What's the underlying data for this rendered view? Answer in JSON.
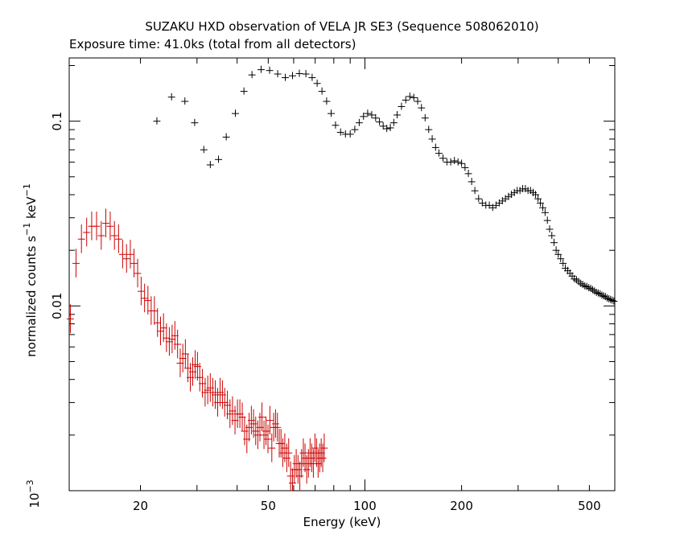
{
  "chart_data": {
    "type": "scatter",
    "title": "SUZAKU HXD observation of VELA JR SE3 (Sequence 508062010)",
    "subtitle": "Exposure time: 41.0ks (total from all detectors)",
    "xlabel": "Energy (keV)",
    "ylabel_prefix": "normalized counts s",
    "ylabel_mid": " keV",
    "ylabel_exp": "−1",
    "xscale": "log",
    "yscale": "log",
    "xlim": [
      12,
      600
    ],
    "ylim": [
      0.001,
      0.22
    ],
    "x_tick_labels": [
      {
        "value": 20,
        "label": "20"
      },
      {
        "value": 50,
        "label": "50"
      },
      {
        "value": 100,
        "label": "100"
      },
      {
        "value": 200,
        "label": "200"
      },
      {
        "value": 500,
        "label": "500"
      }
    ],
    "y_tick_labels": [
      {
        "value": 0.1,
        "label": "0.1"
      },
      {
        "value": 0.01,
        "label": "0.01"
      }
    ],
    "y_bottom_label": {
      "value": 0.001,
      "mantissa": "10",
      "exp": "−3"
    },
    "series": [
      {
        "color": "#000000",
        "points": [
          [
            22.5,
            0.1
          ],
          [
            25,
            0.135
          ],
          [
            27.5,
            0.128
          ],
          [
            29.5,
            0.098
          ],
          [
            31.5,
            0.07
          ],
          [
            33,
            0.058
          ],
          [
            35,
            0.062
          ],
          [
            37,
            0.082
          ],
          [
            39.5,
            0.11
          ],
          [
            42,
            0.145
          ],
          [
            44.5,
            0.178
          ],
          [
            47.5,
            0.19
          ],
          [
            50.5,
            0.188
          ],
          [
            53.5,
            0.18
          ],
          [
            56.5,
            0.172
          ],
          [
            59.5,
            0.176
          ],
          [
            62.5,
            0.181
          ],
          [
            65.5,
            0.18
          ],
          [
            68.5,
            0.172
          ],
          [
            71,
            0.16
          ],
          [
            73.5,
            0.145
          ],
          [
            76,
            0.128
          ],
          [
            78.5,
            0.11
          ],
          [
            81,
            0.095
          ],
          [
            84,
            0.087
          ],
          [
            87,
            0.085
          ],
          [
            90,
            0.085
          ],
          [
            93,
            0.09
          ],
          [
            96,
            0.098
          ],
          [
            99,
            0.106
          ],
          [
            102,
            0.11
          ],
          [
            105,
            0.108
          ],
          [
            108,
            0.104
          ],
          [
            111,
            0.099
          ],
          [
            114,
            0.094
          ],
          [
            117,
            0.091
          ],
          [
            120,
            0.092
          ],
          [
            123,
            0.098
          ],
          [
            126,
            0.108
          ],
          [
            130,
            0.12
          ],
          [
            134,
            0.13
          ],
          [
            138,
            0.136
          ],
          [
            142,
            0.134
          ],
          [
            146,
            0.128
          ],
          [
            150,
            0.118
          ],
          [
            154,
            0.104
          ],
          [
            158,
            0.09
          ],
          [
            162,
            0.08
          ],
          [
            166,
            0.072
          ],
          [
            170,
            0.067
          ],
          [
            175,
            0.063
          ],
          [
            180,
            0.06
          ],
          [
            185,
            0.06
          ],
          [
            190,
            0.061
          ],
          [
            195,
            0.06
          ],
          [
            200,
            0.059
          ],
          [
            205,
            0.056
          ],
          [
            210,
            0.052
          ],
          [
            215,
            0.047
          ],
          [
            220,
            0.042
          ],
          [
            226,
            0.038
          ],
          [
            232,
            0.036
          ],
          [
            238,
            0.035
          ],
          [
            244,
            0.035
          ],
          [
            250,
            0.034
          ],
          [
            256,
            0.035
          ],
          [
            262,
            0.036
          ],
          [
            268,
            0.037
          ],
          [
            274,
            0.038
          ],
          [
            280,
            0.039
          ],
          [
            286,
            0.04
          ],
          [
            292,
            0.041
          ],
          [
            298,
            0.042
          ],
          [
            304,
            0.042
          ],
          [
            310,
            0.043
          ],
          [
            316,
            0.043
          ],
          [
            322,
            0.042
          ],
          [
            328,
            0.042
          ],
          [
            334,
            0.041
          ],
          [
            340,
            0.04
          ],
          [
            346,
            0.038
          ],
          [
            352,
            0.036
          ],
          [
            358,
            0.034
          ],
          [
            364,
            0.032
          ],
          [
            370,
            0.029
          ],
          [
            376,
            0.026
          ],
          [
            382,
            0.024
          ],
          [
            388,
            0.022
          ],
          [
            394,
            0.02
          ],
          [
            400,
            0.019
          ],
          [
            407,
            0.018
          ],
          [
            414,
            0.017
          ],
          [
            421,
            0.016
          ],
          [
            428,
            0.0155
          ],
          [
            435,
            0.015
          ],
          [
            442,
            0.0145
          ],
          [
            449,
            0.014
          ],
          [
            456,
            0.0138
          ],
          [
            463,
            0.0135
          ],
          [
            470,
            0.0132
          ],
          [
            477,
            0.013
          ],
          [
            484,
            0.0128
          ],
          [
            491,
            0.0127
          ],
          [
            498,
            0.0125
          ],
          [
            505,
            0.0124
          ],
          [
            512,
            0.0122
          ],
          [
            519,
            0.012
          ],
          [
            526,
            0.0118
          ],
          [
            533,
            0.0117
          ],
          [
            540,
            0.0116
          ],
          [
            547,
            0.0114
          ],
          [
            554,
            0.0113
          ],
          [
            561,
            0.0112
          ],
          [
            568,
            0.011
          ],
          [
            575,
            0.0109
          ],
          [
            582,
            0.0108
          ],
          [
            589,
            0.0107
          ],
          [
            596,
            0.0106
          ]
        ]
      },
      {
        "color": "#cc0000",
        "points": [
          [
            12.1,
            0.0085
          ],
          [
            12.6,
            0.017
          ],
          [
            13.1,
            0.023
          ],
          [
            13.6,
            0.025
          ],
          [
            14.1,
            0.027
          ],
          [
            14.6,
            0.027
          ],
          [
            15.1,
            0.024
          ],
          [
            15.6,
            0.028
          ],
          [
            16.1,
            0.027
          ],
          [
            16.6,
            0.024
          ],
          [
            17.1,
            0.023
          ],
          [
            17.6,
            0.019
          ],
          [
            18.1,
            0.018
          ],
          [
            18.6,
            0.019
          ],
          [
            19.1,
            0.017
          ],
          [
            19.6,
            0.015
          ],
          [
            20.1,
            0.012
          ],
          [
            20.6,
            0.011
          ],
          [
            21.1,
            0.0107
          ],
          [
            21.6,
            0.0094
          ],
          [
            22.1,
            0.0094
          ],
          [
            22.6,
            0.0081
          ],
          [
            23.1,
            0.0073
          ],
          [
            23.6,
            0.0076
          ],
          [
            24.1,
            0.0067
          ],
          [
            24.6,
            0.0064
          ],
          [
            25.1,
            0.0066
          ],
          [
            25.6,
            0.0069
          ],
          [
            26.1,
            0.0062
          ],
          [
            26.6,
            0.0049
          ],
          [
            27.1,
            0.0052
          ],
          [
            27.6,
            0.0055
          ],
          [
            28.1,
            0.0046
          ],
          [
            28.6,
            0.0041
          ],
          [
            29.1,
            0.0044
          ],
          [
            29.6,
            0.0048
          ],
          [
            30.1,
            0.0047
          ],
          [
            30.6,
            0.0041
          ],
          [
            31.2,
            0.0038
          ],
          [
            31.8,
            0.0034
          ],
          [
            32.4,
            0.0035
          ],
          [
            33.0,
            0.0036
          ],
          [
            33.6,
            0.0034
          ],
          [
            34.2,
            0.0033
          ],
          [
            34.8,
            0.003
          ],
          [
            35.4,
            0.0034
          ],
          [
            36.0,
            0.0033
          ],
          [
            36.6,
            0.003
          ],
          [
            37.3,
            0.0029
          ],
          [
            38.0,
            0.0026
          ],
          [
            38.7,
            0.0027
          ],
          [
            39.4,
            0.0024
          ],
          [
            40.1,
            0.0026
          ],
          [
            40.8,
            0.0026
          ],
          [
            41.5,
            0.0025
          ],
          [
            42.2,
            0.0021
          ],
          [
            42.9,
            0.0019
          ],
          [
            43.6,
            0.0022
          ],
          [
            44.3,
            0.0024
          ],
          [
            45.0,
            0.0023
          ],
          [
            45.7,
            0.0021
          ],
          [
            46.4,
            0.002
          ],
          [
            47.1,
            0.0022
          ],
          [
            47.8,
            0.0025
          ],
          [
            48.5,
            0.002
          ],
          [
            49.2,
            0.0021
          ],
          [
            49.9,
            0.0019
          ],
          [
            50.6,
            0.0024
          ],
          [
            51.3,
            0.0017
          ],
          [
            52.0,
            0.0022
          ],
          [
            52.7,
            0.0023
          ],
          [
            53.4,
            0.0022
          ],
          [
            54.1,
            0.0018
          ],
          [
            54.8,
            0.0018
          ],
          [
            55.5,
            0.0016
          ],
          [
            56.3,
            0.0017
          ],
          [
            57.1,
            0.0015
          ],
          [
            57.9,
            0.0016
          ],
          [
            58.7,
            0.0012
          ],
          [
            59.5,
            0.0011
          ],
          [
            60.3,
            0.0013
          ],
          [
            61.1,
            0.0014
          ],
          [
            61.9,
            0.0013
          ],
          [
            62.7,
            0.0012
          ],
          [
            63.5,
            0.0014
          ],
          [
            64.3,
            0.0016
          ],
          [
            65.1,
            0.0015
          ],
          [
            65.9,
            0.0013
          ],
          [
            66.7,
            0.0014
          ],
          [
            67.5,
            0.0016
          ],
          [
            68.3,
            0.0015
          ],
          [
            69.1,
            0.0014
          ],
          [
            69.9,
            0.0017
          ],
          [
            70.7,
            0.0016
          ],
          [
            71.5,
            0.0014
          ],
          [
            72.3,
            0.0015
          ],
          [
            73.1,
            0.0016
          ],
          [
            73.9,
            0.0015
          ],
          [
            74.7,
            0.0017
          ]
        ]
      }
    ]
  }
}
